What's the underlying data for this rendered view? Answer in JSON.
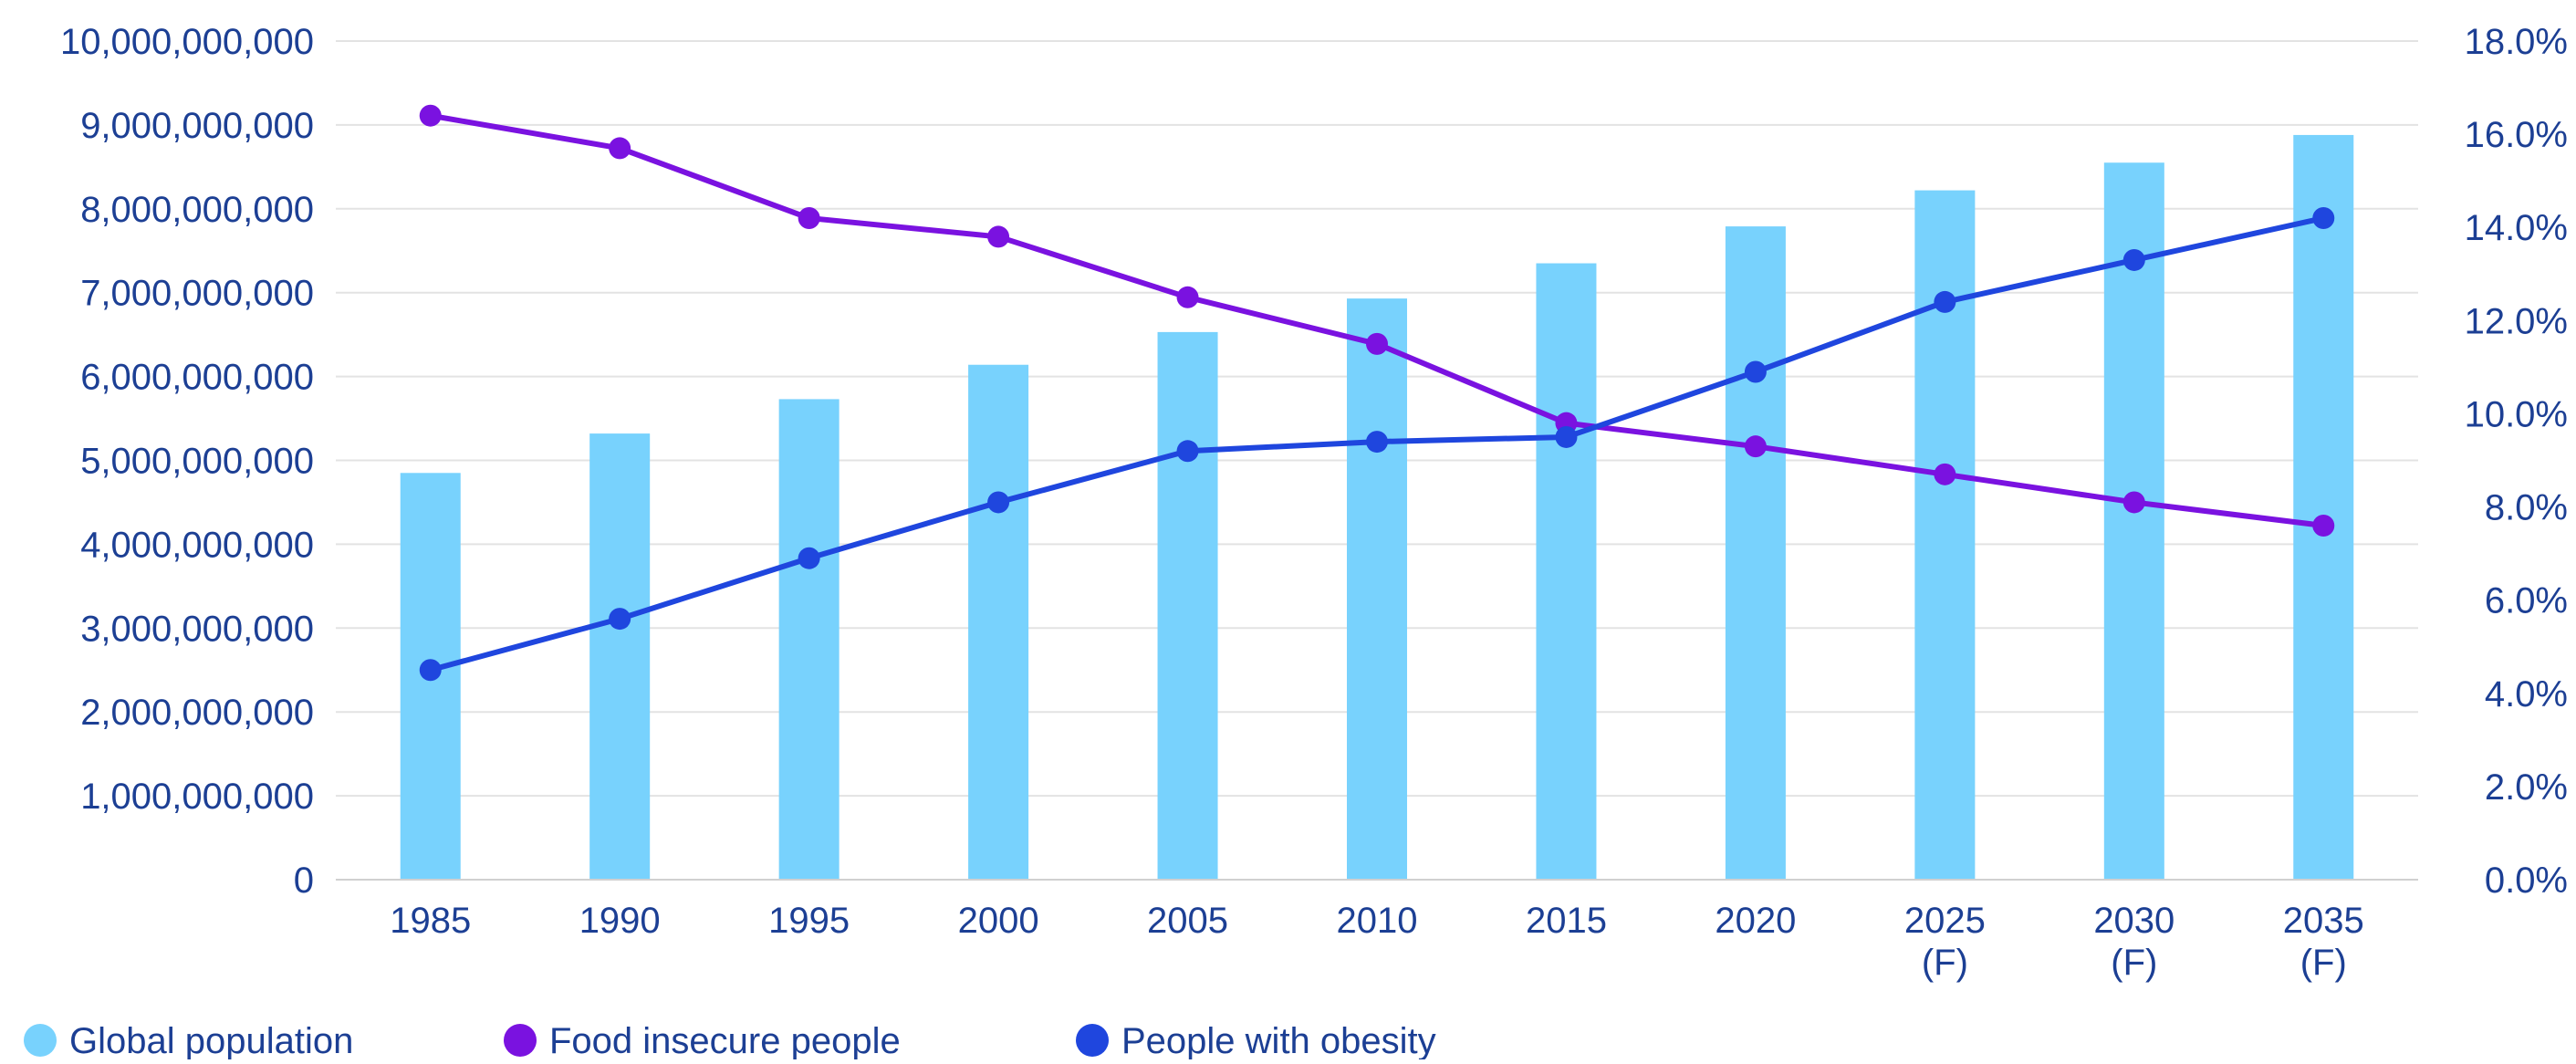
{
  "chart_data": {
    "type": "bar",
    "title": "",
    "categories": [
      {
        "label": "1985",
        "sub": ""
      },
      {
        "label": "1990",
        "sub": ""
      },
      {
        "label": "1995",
        "sub": ""
      },
      {
        "label": "2000",
        "sub": ""
      },
      {
        "label": "2005",
        "sub": ""
      },
      {
        "label": "2010",
        "sub": ""
      },
      {
        "label": "2015",
        "sub": ""
      },
      {
        "label": "2020",
        "sub": ""
      },
      {
        "label": "2025",
        "sub": "(F)"
      },
      {
        "label": "2030",
        "sub": "(F)"
      },
      {
        "label": "2035",
        "sub": "(F)"
      }
    ],
    "y_left": {
      "range": [
        0,
        10000000000
      ],
      "ticks": [
        "0",
        "1,000,000,000",
        "2,000,000,000",
        "3,000,000,000",
        "4,000,000,000",
        "5,000,000,000",
        "6,000,000,000",
        "7,000,000,000",
        "8,000,000,000",
        "9,000,000,000",
        "10,000,000,000"
      ]
    },
    "y_right": {
      "range": [
        0,
        18
      ],
      "ticks": [
        "0.0%",
        "2.0%",
        "4.0%",
        "6.0%",
        "8.0%",
        "10.0%",
        "12.0%",
        "14.0%",
        "16.0%",
        "18.0%"
      ]
    },
    "grid": true,
    "legend_position": "bottom-left",
    "series": [
      {
        "name": "Global population",
        "kind": "bar",
        "axis": "left",
        "color": "#78d2fd",
        "values": [
          4850000000,
          5320000000,
          5730000000,
          6140000000,
          6530000000,
          6930000000,
          7350000000,
          7790000000,
          8220000000,
          8550000000,
          8880000000
        ]
      },
      {
        "name": "Food insecure people",
        "kind": "line",
        "axis": "right",
        "color": "#7a12e0",
        "values": [
          16.4,
          15.7,
          14.2,
          13.8,
          12.5,
          11.5,
          9.8,
          9.3,
          8.7,
          8.1,
          7.6
        ]
      },
      {
        "name": "People with obesity",
        "kind": "line",
        "axis": "right",
        "color": "#1f46de",
        "values": [
          4.5,
          5.6,
          6.9,
          8.1,
          9.2,
          9.4,
          9.5,
          10.9,
          12.4,
          13.3,
          14.2
        ]
      }
    ]
  }
}
